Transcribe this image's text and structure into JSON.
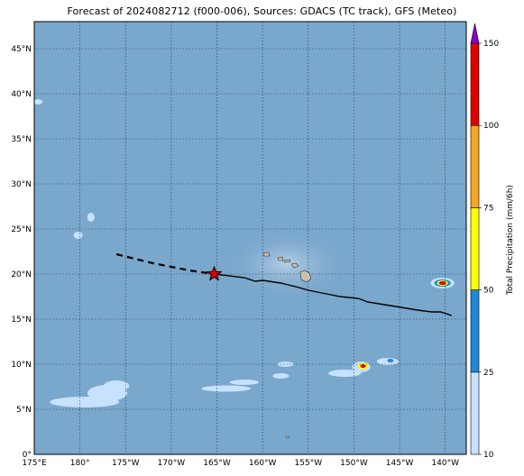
{
  "title": "Forecast of 2024082712 (f000-006), Sources: GDACS (TC track), GFS (Meteo)",
  "map": {
    "lon_range": [
      -185,
      -137.7
    ],
    "lat_range": [
      0,
      48
    ],
    "lat_ticks": [
      {
        "value": 0,
        "label": "0°"
      },
      {
        "value": 5,
        "label": "5°N"
      },
      {
        "value": 10,
        "label": "10°N"
      },
      {
        "value": 15,
        "label": "15°N"
      },
      {
        "value": 20,
        "label": "20°N"
      },
      {
        "value": 25,
        "label": "25°N"
      },
      {
        "value": 30,
        "label": "30°N"
      },
      {
        "value": 35,
        "label": "35°N"
      },
      {
        "value": 40,
        "label": "40°N"
      },
      {
        "value": 45,
        "label": "45°N"
      }
    ],
    "lon_ticks": [
      {
        "value": -185,
        "label": "175°E"
      },
      {
        "value": -180,
        "label": "180°"
      },
      {
        "value": -175,
        "label": "175°W"
      },
      {
        "value": -170,
        "label": "170°W"
      },
      {
        "value": -165,
        "label": "165°W"
      },
      {
        "value": -160,
        "label": "160°W"
      },
      {
        "value": -155,
        "label": "155°W"
      },
      {
        "value": -150,
        "label": "150°W"
      },
      {
        "value": -145,
        "label": "145°W"
      },
      {
        "value": -140,
        "label": "140°W"
      }
    ],
    "ocean_color": "#7aa7cc",
    "gridline_style": "dotted"
  },
  "tc_track": {
    "past_forecast": [
      [
        -176,
        22.2
      ],
      [
        -172,
        21.2
      ],
      [
        -168,
        20.4
      ],
      [
        -165.3,
        20.0
      ]
    ],
    "future_observed": [
      [
        -165.3,
        20.0
      ],
      [
        -162,
        19.6
      ],
      [
        -160.8,
        19.2
      ],
      [
        -160,
        19.3
      ],
      [
        -158,
        19.0
      ],
      [
        -156,
        18.5
      ],
      [
        -155,
        18.2
      ],
      [
        -153,
        17.8
      ],
      [
        -151.5,
        17.5
      ],
      [
        -149.5,
        17.3
      ],
      [
        -148.5,
        16.9
      ],
      [
        -146,
        16.5
      ],
      [
        -143,
        16.0
      ],
      [
        -141.5,
        15.8
      ],
      [
        -140.5,
        15.8
      ],
      [
        -139.3,
        15.4
      ]
    ],
    "current_position": [
      -165.3,
      20.0
    ],
    "marker": "red-star",
    "line_color": "#000000"
  },
  "precip_cells": [
    {
      "lon": -179.5,
      "lat": 5.8,
      "rx": 3.8,
      "ry": 0.6,
      "level": 1
    },
    {
      "lon": -177,
      "lat": 6.8,
      "rx": 2.2,
      "ry": 0.9,
      "level": 1
    },
    {
      "lon": -176,
      "lat": 7.6,
      "rx": 1.4,
      "ry": 0.6,
      "level": 1
    },
    {
      "lon": -164,
      "lat": 7.3,
      "rx": 2.7,
      "ry": 0.35,
      "level": 1
    },
    {
      "lon": -162,
      "lat": 8.0,
      "rx": 1.6,
      "ry": 0.3,
      "level": 1
    },
    {
      "lon": -158,
      "lat": 8.7,
      "rx": 0.9,
      "ry": 0.3,
      "level": 1
    },
    {
      "lon": -157.5,
      "lat": 10.0,
      "rx": 0.9,
      "ry": 0.3,
      "level": 1
    },
    {
      "lon": -178.8,
      "lat": 26.3,
      "rx": 0.4,
      "ry": 0.5,
      "level": 1
    },
    {
      "lon": -180.2,
      "lat": 24.3,
      "rx": 0.5,
      "ry": 0.4,
      "level": 1
    },
    {
      "lon": -184.6,
      "lat": 39.1,
      "rx": 0.5,
      "ry": 0.3,
      "level": 1
    },
    {
      "lon": -151,
      "lat": 9.0,
      "rx": 1.8,
      "ry": 0.4,
      "level": 1
    },
    {
      "lon": -149.2,
      "lat": 9.7,
      "rx": 1.0,
      "ry": 0.6,
      "level": 1
    },
    {
      "lon": -149.0,
      "lat": 9.8,
      "rx": 0.6,
      "ry": 0.35,
      "level": 3
    },
    {
      "lon": -149.0,
      "lat": 9.8,
      "rx": 0.3,
      "ry": 0.2,
      "level": 5
    },
    {
      "lon": -146.3,
      "lat": 10.3,
      "rx": 1.2,
      "ry": 0.4,
      "level": 1
    },
    {
      "lon": -146.0,
      "lat": 10.4,
      "rx": 0.35,
      "ry": 0.2,
      "level": 2
    },
    {
      "lon": -140.3,
      "lat": 19.0,
      "rx": 1.3,
      "ry": 0.6,
      "level": 1
    },
    {
      "lon": -140.3,
      "lat": 19.0,
      "rx": 0.9,
      "ry": 0.4,
      "level": 2
    },
    {
      "lon": -140.3,
      "lat": 19.0,
      "rx": 0.6,
      "ry": 0.3,
      "level": 3
    },
    {
      "lon": -140.3,
      "lat": 19.0,
      "rx": 0.4,
      "ry": 0.2,
      "level": 5
    }
  ],
  "colorbar": {
    "title": "Total Precipitation (mm/6h)",
    "levels": [
      10,
      25,
      50,
      75,
      100,
      150
    ],
    "tick_labels": [
      "10",
      "25",
      "50",
      "75",
      "100",
      "150"
    ],
    "colors": [
      "#c6e2ff",
      "#1e88d8",
      "#ffff00",
      "#f5a623",
      "#e00000"
    ],
    "extend_color": "#8a00c8"
  }
}
